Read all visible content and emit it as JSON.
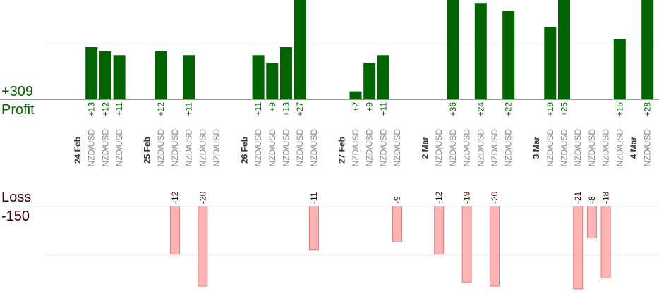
{
  "summary": {
    "profit_total": "+309",
    "profit_label": "Profit",
    "loss_label": "Loss",
    "loss_total": "-150"
  },
  "colors": {
    "profit_fill": "#006400",
    "profit_text": "#006400",
    "loss_fill": "#ffb3b3",
    "loss_stroke": "#e07a7a",
    "loss_label_text": "#3a0000",
    "date_text": "#333333",
    "pair_text": "#888888",
    "axis": "#999999",
    "grid": "#eeeeee"
  },
  "chart_data": {
    "type": "bar",
    "title": "",
    "xlabel": "",
    "ylabel": "",
    "ylim_profit": [
      0,
      36
    ],
    "ylim_loss": [
      -20,
      0
    ],
    "grid": true,
    "date_labels": [
      {
        "label": "24 Feb",
        "slot": 0
      },
      {
        "label": "25 Feb",
        "slot": 5
      },
      {
        "label": "26 Feb",
        "slot": 12
      },
      {
        "label": "27 Feb",
        "slot": 19
      },
      {
        "label": "2 Mar",
        "slot": 25
      },
      {
        "label": "3 Mar",
        "slot": 33
      },
      {
        "label": "4 Mar",
        "slot": 40
      }
    ],
    "trades": [
      {
        "slot": 1,
        "pair": "NZD/USD",
        "value": 13,
        "label": "+13"
      },
      {
        "slot": 2,
        "pair": "NZD/USD",
        "value": 12,
        "label": "+12"
      },
      {
        "slot": 3,
        "pair": "NZD/USD",
        "value": 11,
        "label": "+11"
      },
      {
        "slot": 6,
        "pair": "NZD/USD",
        "value": 12,
        "label": "+12"
      },
      {
        "slot": 7,
        "pair": "NZD/USD",
        "value": -12,
        "label": "-12"
      },
      {
        "slot": 8,
        "pair": "NZD/USD",
        "value": 11,
        "label": "+11"
      },
      {
        "slot": 9,
        "pair": "NZD/USD",
        "value": -20,
        "label": "-20"
      },
      {
        "slot": 10,
        "pair": "NZD/USD",
        "value": 0,
        "label": ""
      },
      {
        "slot": 13,
        "pair": "NZD/USD",
        "value": 11,
        "label": "+11"
      },
      {
        "slot": 14,
        "pair": "NZD/USD",
        "value": 9,
        "label": "+9"
      },
      {
        "slot": 15,
        "pair": "NZD/USD",
        "value": 13,
        "label": "+13"
      },
      {
        "slot": 16,
        "pair": "NZD/USD",
        "value": 27,
        "label": "+27"
      },
      {
        "slot": 17,
        "pair": "NZD/USD",
        "value": -11,
        "label": "-11"
      },
      {
        "slot": 20,
        "pair": "NZD/USD",
        "value": 2,
        "label": "+2"
      },
      {
        "slot": 21,
        "pair": "NZD/USD",
        "value": 9,
        "label": "+9"
      },
      {
        "slot": 22,
        "pair": "NZD/USD",
        "value": 11,
        "label": "+11"
      },
      {
        "slot": 23,
        "pair": "NZD/USD",
        "value": -9,
        "label": "-9"
      },
      {
        "slot": 26,
        "pair": "NZD/USD",
        "value": -12,
        "label": "-12"
      },
      {
        "slot": 27,
        "pair": "NZD/USD",
        "value": 36,
        "label": "+36"
      },
      {
        "slot": 28,
        "pair": "NZD/USD",
        "value": -19,
        "label": "-19"
      },
      {
        "slot": 29,
        "pair": "NZD/USD",
        "value": 24,
        "label": "+24"
      },
      {
        "slot": 30,
        "pair": "NZD/USD",
        "value": -20,
        "label": "-20"
      },
      {
        "slot": 31,
        "pair": "NZD/USD",
        "value": 22,
        "label": "+22"
      },
      {
        "slot": 34,
        "pair": "NZD/USD",
        "value": 18,
        "label": "+18"
      },
      {
        "slot": 35,
        "pair": "NZD/USD",
        "value": 25,
        "label": "+25"
      },
      {
        "slot": 36,
        "pair": "NZD/USD",
        "value": -21,
        "label": "-21"
      },
      {
        "slot": 37,
        "pair": "NZD/USD",
        "value": -8,
        "label": "-8"
      },
      {
        "slot": 38,
        "pair": "NZD/USD",
        "value": -18,
        "label": "-18"
      },
      {
        "slot": 39,
        "pair": "NZD/USD",
        "value": 15,
        "label": "+15"
      },
      {
        "slot": 41,
        "pair": "NZD/USD",
        "value": 28,
        "label": "+28"
      }
    ]
  }
}
